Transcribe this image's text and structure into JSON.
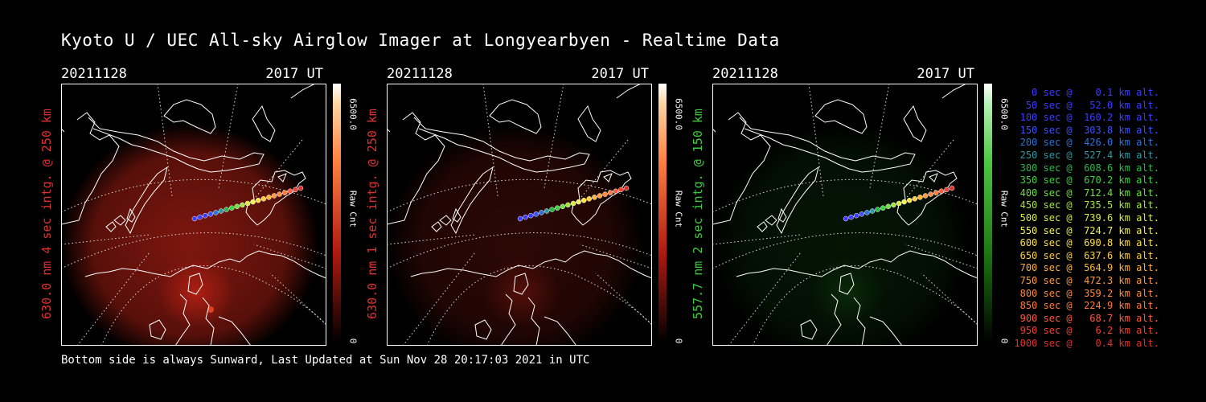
{
  "title": "Kyoto U / UEC All-sky Airglow Imager at Longyearbyen - Realtime Data",
  "footer": "Bottom side is always Sunward, Last Updated at Sun Nov 28 20:17:03 2021 in UTC",
  "panels": [
    {
      "date": "20211128",
      "time": "2017 UT",
      "ylabel": "630.0 nm 4 sec intg. @ 250 km",
      "label_color": "#e03030",
      "cbar_max": "6500.0",
      "cbar_min": "0",
      "cbar_unit": "Raw Cnt",
      "glow": "red",
      "glow_level": 0.7
    },
    {
      "date": "20211128",
      "time": "2017 UT",
      "ylabel": "630.0 nm 1 sec intg. @ 250 km",
      "label_color": "#e03030",
      "cbar_max": "6500.0",
      "cbar_min": "0",
      "cbar_unit": "Raw Cnt",
      "glow": "red",
      "glow_level": 0.25
    },
    {
      "date": "20211128",
      "time": "2017 UT",
      "ylabel": "557.7 nm 2 sec intg. @ 150 km",
      "label_color": "#3ccc3c",
      "cbar_max": "6500.0",
      "cbar_min": "0",
      "cbar_unit": "Raw Cnt",
      "glow": "green",
      "glow_level": 0.15
    }
  ],
  "chart_data": {
    "type": "scatter",
    "series": [
      {
        "name": "altitude track",
        "x": [
          0,
          50,
          100,
          150,
          200,
          250,
          300,
          350,
          400,
          450,
          500,
          550,
          600,
          650,
          700,
          750,
          800,
          850,
          900,
          950,
          1000
        ],
        "y": [
          0.1,
          52.0,
          160.2,
          303.8,
          426.0,
          527.4,
          608.6,
          670.2,
          712.4,
          735.5,
          739.6,
          724.7,
          690.8,
          637.6,
          564.9,
          472.3,
          359.2,
          224.9,
          68.7,
          6.2,
          0.4
        ]
      }
    ],
    "legend_items": [
      {
        "text": "   0 sec @    0.1 km alt.",
        "color": "#3c3cff"
      },
      {
        "text": "  50 sec @   52.0 km alt.",
        "color": "#3c3cff"
      },
      {
        "text": " 100 sec @  160.2 km alt.",
        "color": "#3c3cff"
      },
      {
        "text": " 150 sec @  303.8 km alt.",
        "color": "#3c50ff"
      },
      {
        "text": " 200 sec @  426.0 km alt.",
        "color": "#2a73d8"
      },
      {
        "text": " 250 sec @  527.4 km alt.",
        "color": "#2a9aa5"
      },
      {
        "text": " 300 sec @  608.6 km alt.",
        "color": "#28b84a"
      },
      {
        "text": " 350 sec @  670.2 km alt.",
        "color": "#3cd23c"
      },
      {
        "text": " 400 sec @  712.4 km alt.",
        "color": "#6de03c"
      },
      {
        "text": " 450 sec @  735.5 km alt.",
        "color": "#a6e63c"
      },
      {
        "text": " 500 sec @  739.6 km alt.",
        "color": "#d8ea3c"
      },
      {
        "text": " 550 sec @  724.7 km alt.",
        "color": "#f0f05a"
      },
      {
        "text": " 600 sec @  690.8 km alt.",
        "color": "#ffe03c"
      },
      {
        "text": " 650 sec @  637.6 km alt.",
        "color": "#ffcc3c"
      },
      {
        "text": " 700 sec @  564.9 km alt.",
        "color": "#ffb43c"
      },
      {
        "text": " 750 sec @  472.3 km alt.",
        "color": "#ff9a3c"
      },
      {
        "text": " 800 sec @  359.2 km alt.",
        "color": "#ff8a3c"
      },
      {
        "text": " 850 sec @  224.9 km alt.",
        "color": "#ff7a3c"
      },
      {
        "text": " 900 sec @   68.7 km alt.",
        "color": "#ff5a3c"
      },
      {
        "text": " 950 sec @    6.2 km alt.",
        "color": "#f04030"
      },
      {
        "text": "1000 sec @    0.4 km alt.",
        "color": "#e03028"
      }
    ]
  }
}
